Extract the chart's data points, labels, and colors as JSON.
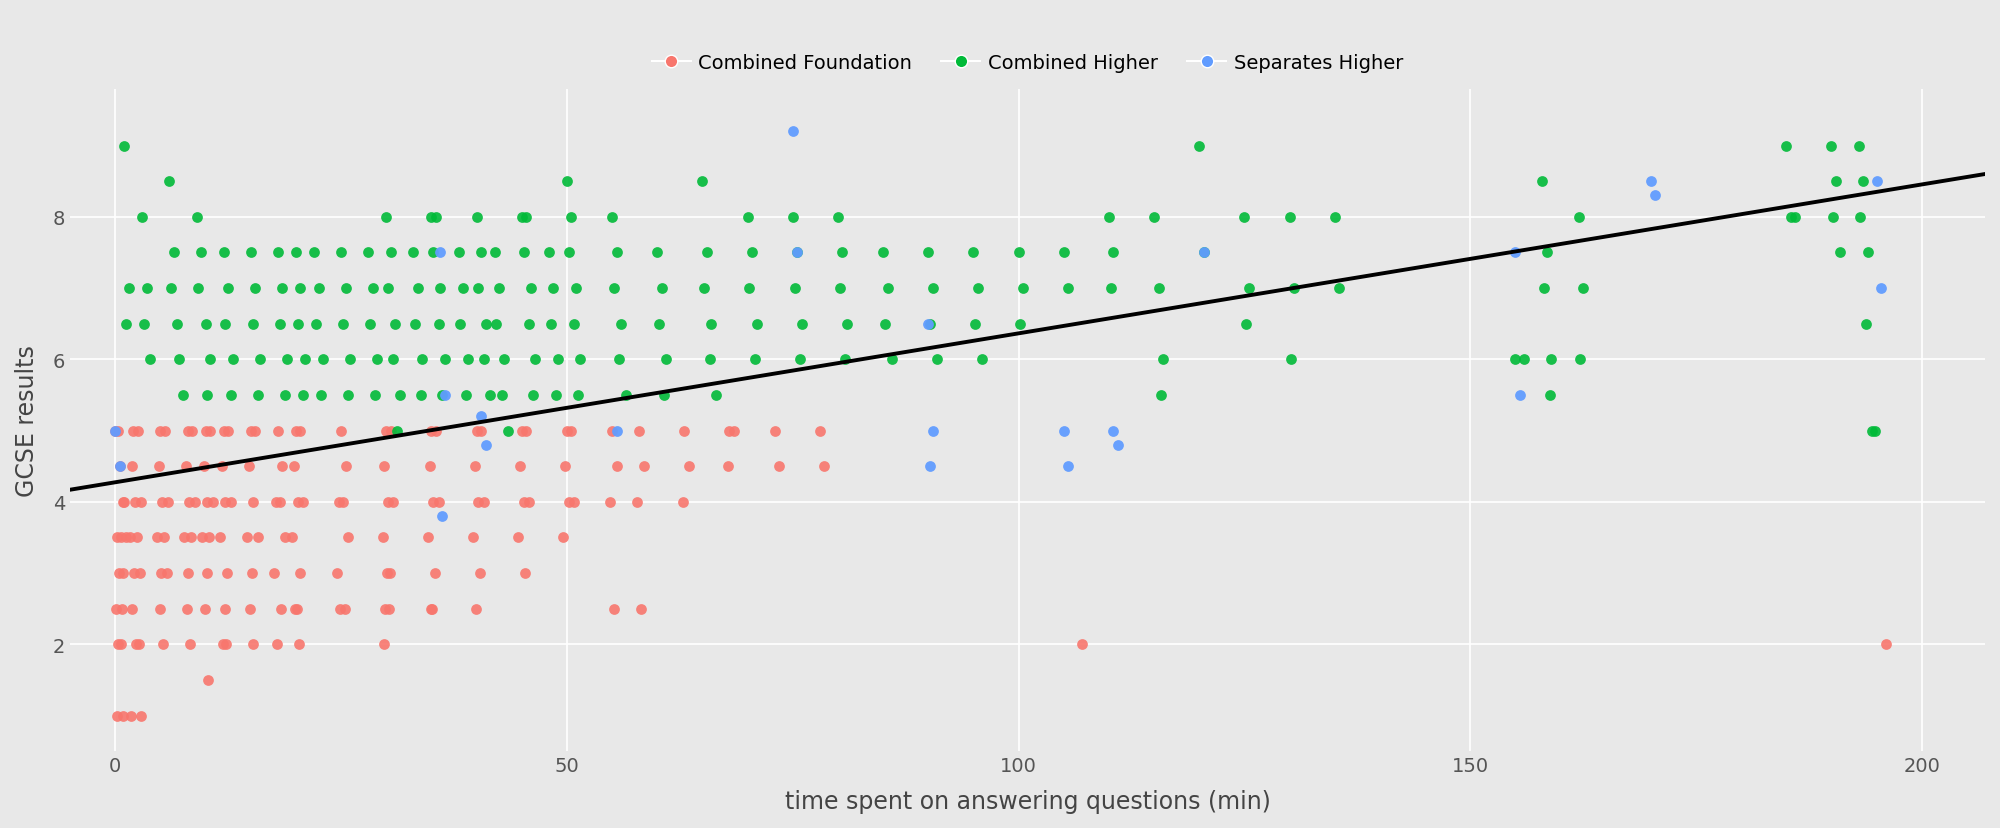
{
  "title": "",
  "xlabel": "time spent on answering questions (min)",
  "ylabel": "GCSE results",
  "xlim": [
    -5,
    207
  ],
  "ylim": [
    0.5,
    9.8
  ],
  "yticks": [
    2,
    4,
    6,
    8
  ],
  "xticks": [
    0,
    50,
    100,
    150,
    200
  ],
  "regression_line": {
    "x0": -5,
    "y0": 4.17,
    "x1": 207,
    "y1": 8.6
  },
  "legend_labels": [
    "Combined Foundation",
    "Combined Higher",
    "Separates Higher"
  ],
  "legend_colors": [
    "#F8766D",
    "#00BA38",
    "#619CFF"
  ],
  "background_color": "#E8E8E8",
  "grid_color": "#FFFFFF",
  "combined_foundation": [
    [
      0.0,
      5.0
    ],
    [
      0.3,
      5.0
    ],
    [
      0.5,
      4.5
    ],
    [
      0.8,
      4.0
    ],
    [
      1.0,
      4.0
    ],
    [
      0.2,
      3.5
    ],
    [
      0.6,
      3.5
    ],
    [
      1.2,
      3.5
    ],
    [
      0.4,
      3.0
    ],
    [
      0.9,
      3.0
    ],
    [
      0.1,
      2.5
    ],
    [
      0.7,
      2.5
    ],
    [
      0.3,
      2.0
    ],
    [
      0.6,
      2.0
    ],
    [
      0.2,
      1.0
    ],
    [
      0.8,
      1.0
    ],
    [
      2.0,
      5.0
    ],
    [
      2.5,
      5.0
    ],
    [
      1.8,
      4.5
    ],
    [
      2.2,
      4.0
    ],
    [
      2.8,
      4.0
    ],
    [
      1.6,
      3.5
    ],
    [
      2.4,
      3.5
    ],
    [
      2.1,
      3.0
    ],
    [
      2.7,
      3.0
    ],
    [
      1.9,
      2.5
    ],
    [
      2.3,
      2.0
    ],
    [
      2.6,
      2.0
    ],
    [
      1.7,
      1.0
    ],
    [
      2.9,
      1.0
    ],
    [
      5.0,
      5.0
    ],
    [
      5.5,
      5.0
    ],
    [
      4.8,
      4.5
    ],
    [
      5.2,
      4.0
    ],
    [
      5.8,
      4.0
    ],
    [
      4.6,
      3.5
    ],
    [
      5.4,
      3.5
    ],
    [
      5.1,
      3.0
    ],
    [
      5.7,
      3.0
    ],
    [
      4.9,
      2.5
    ],
    [
      5.3,
      2.0
    ],
    [
      8.0,
      5.0
    ],
    [
      8.5,
      5.0
    ],
    [
      7.8,
      4.5
    ],
    [
      8.2,
      4.0
    ],
    [
      8.8,
      4.0
    ],
    [
      7.6,
      3.5
    ],
    [
      8.4,
      3.5
    ],
    [
      8.1,
      3.0
    ],
    [
      7.9,
      2.5
    ],
    [
      8.3,
      2.0
    ],
    [
      10.0,
      5.0
    ],
    [
      10.5,
      5.0
    ],
    [
      9.8,
      4.5
    ],
    [
      10.2,
      4.0
    ],
    [
      10.8,
      4.0
    ],
    [
      9.6,
      3.5
    ],
    [
      10.4,
      3.5
    ],
    [
      10.1,
      3.0
    ],
    [
      9.9,
      2.5
    ],
    [
      10.3,
      1.5
    ],
    [
      12.0,
      5.0
    ],
    [
      12.5,
      5.0
    ],
    [
      11.8,
      4.5
    ],
    [
      12.2,
      4.0
    ],
    [
      12.8,
      4.0
    ],
    [
      11.6,
      3.5
    ],
    [
      12.4,
      3.0
    ],
    [
      12.1,
      2.5
    ],
    [
      11.9,
      2.0
    ],
    [
      12.3,
      2.0
    ],
    [
      15.0,
      5.0
    ],
    [
      15.5,
      5.0
    ],
    [
      14.8,
      4.5
    ],
    [
      15.2,
      4.0
    ],
    [
      15.8,
      3.5
    ],
    [
      14.6,
      3.5
    ],
    [
      15.1,
      3.0
    ],
    [
      14.9,
      2.5
    ],
    [
      15.3,
      2.0
    ],
    [
      18.0,
      5.0
    ],
    [
      18.5,
      4.5
    ],
    [
      17.8,
      4.0
    ],
    [
      18.2,
      4.0
    ],
    [
      18.8,
      3.5
    ],
    [
      17.6,
      3.0
    ],
    [
      18.4,
      2.5
    ],
    [
      17.9,
      2.0
    ],
    [
      20.0,
      5.0
    ],
    [
      20.5,
      5.0
    ],
    [
      19.8,
      4.5
    ],
    [
      20.2,
      4.0
    ],
    [
      20.8,
      4.0
    ],
    [
      19.6,
      3.5
    ],
    [
      20.4,
      3.0
    ],
    [
      20.1,
      2.5
    ],
    [
      19.9,
      2.5
    ],
    [
      20.3,
      2.0
    ],
    [
      25.0,
      5.0
    ],
    [
      25.5,
      4.5
    ],
    [
      24.8,
      4.0
    ],
    [
      25.2,
      4.0
    ],
    [
      25.8,
      3.5
    ],
    [
      24.6,
      3.0
    ],
    [
      25.4,
      2.5
    ],
    [
      24.9,
      2.5
    ],
    [
      30.0,
      5.0
    ],
    [
      30.5,
      5.0
    ],
    [
      29.8,
      4.5
    ],
    [
      30.2,
      4.0
    ],
    [
      30.8,
      4.0
    ],
    [
      29.6,
      3.5
    ],
    [
      30.4,
      3.0
    ],
    [
      30.1,
      3.0
    ],
    [
      29.9,
      2.5
    ],
    [
      30.3,
      2.5
    ],
    [
      29.7,
      2.0
    ],
    [
      35.0,
      5.0
    ],
    [
      35.5,
      5.0
    ],
    [
      34.8,
      4.5
    ],
    [
      35.2,
      4.0
    ],
    [
      35.8,
      4.0
    ],
    [
      34.6,
      3.5
    ],
    [
      35.4,
      3.0
    ],
    [
      35.1,
      2.5
    ],
    [
      34.9,
      2.5
    ],
    [
      40.0,
      5.0
    ],
    [
      40.5,
      5.0
    ],
    [
      39.8,
      4.5
    ],
    [
      40.2,
      4.0
    ],
    [
      40.8,
      4.0
    ],
    [
      39.6,
      3.5
    ],
    [
      40.4,
      3.0
    ],
    [
      39.9,
      2.5
    ],
    [
      45.0,
      5.0
    ],
    [
      45.5,
      5.0
    ],
    [
      44.8,
      4.5
    ],
    [
      45.2,
      4.0
    ],
    [
      45.8,
      4.0
    ],
    [
      44.6,
      3.5
    ],
    [
      45.4,
      3.0
    ],
    [
      50.0,
      5.0
    ],
    [
      50.5,
      5.0
    ],
    [
      49.8,
      4.5
    ],
    [
      50.2,
      4.0
    ],
    [
      50.8,
      4.0
    ],
    [
      49.6,
      3.5
    ],
    [
      55.0,
      5.0
    ],
    [
      55.5,
      4.5
    ],
    [
      54.8,
      4.0
    ],
    [
      55.2,
      2.5
    ],
    [
      58.0,
      5.0
    ],
    [
      58.5,
      4.5
    ],
    [
      57.8,
      4.0
    ],
    [
      58.2,
      2.5
    ],
    [
      63.0,
      5.0
    ],
    [
      63.5,
      4.5
    ],
    [
      62.8,
      4.0
    ],
    [
      68.0,
      5.0
    ],
    [
      68.5,
      5.0
    ],
    [
      67.8,
      4.5
    ],
    [
      73.0,
      5.0
    ],
    [
      73.5,
      4.5
    ],
    [
      78.0,
      5.0
    ],
    [
      78.5,
      4.5
    ],
    [
      107.0,
      2.0
    ],
    [
      196.0,
      2.0
    ]
  ],
  "combined_higher": [
    [
      1.0,
      9.0
    ],
    [
      1.5,
      7.0
    ],
    [
      1.2,
      6.5
    ],
    [
      3.0,
      8.0
    ],
    [
      3.5,
      7.0
    ],
    [
      3.2,
      6.5
    ],
    [
      3.8,
      6.0
    ],
    [
      6.0,
      8.5
    ],
    [
      6.5,
      7.5
    ],
    [
      6.2,
      7.0
    ],
    [
      6.8,
      6.5
    ],
    [
      7.0,
      6.0
    ],
    [
      7.5,
      5.5
    ],
    [
      9.0,
      8.0
    ],
    [
      9.5,
      7.5
    ],
    [
      9.2,
      7.0
    ],
    [
      10.0,
      6.5
    ],
    [
      10.5,
      6.0
    ],
    [
      10.2,
      5.5
    ],
    [
      12.0,
      7.5
    ],
    [
      12.5,
      7.0
    ],
    [
      12.2,
      6.5
    ],
    [
      13.0,
      6.0
    ],
    [
      12.8,
      5.5
    ],
    [
      15.0,
      7.5
    ],
    [
      15.5,
      7.0
    ],
    [
      15.2,
      6.5
    ],
    [
      16.0,
      6.0
    ],
    [
      15.8,
      5.5
    ],
    [
      18.0,
      7.5
    ],
    [
      18.5,
      7.0
    ],
    [
      18.2,
      6.5
    ],
    [
      19.0,
      6.0
    ],
    [
      18.8,
      5.5
    ],
    [
      20.0,
      7.5
    ],
    [
      20.5,
      7.0
    ],
    [
      20.2,
      6.5
    ],
    [
      21.0,
      6.0
    ],
    [
      20.8,
      5.5
    ],
    [
      22.0,
      7.5
    ],
    [
      22.5,
      7.0
    ],
    [
      22.2,
      6.5
    ],
    [
      23.0,
      6.0
    ],
    [
      22.8,
      5.5
    ],
    [
      25.0,
      7.5
    ],
    [
      25.5,
      7.0
    ],
    [
      25.2,
      6.5
    ],
    [
      26.0,
      6.0
    ],
    [
      25.8,
      5.5
    ],
    [
      28.0,
      7.5
    ],
    [
      28.5,
      7.0
    ],
    [
      28.2,
      6.5
    ],
    [
      29.0,
      6.0
    ],
    [
      28.8,
      5.5
    ],
    [
      30.0,
      8.0
    ],
    [
      30.5,
      7.5
    ],
    [
      30.2,
      7.0
    ],
    [
      31.0,
      6.5
    ],
    [
      30.8,
      6.0
    ],
    [
      31.5,
      5.5
    ],
    [
      31.2,
      5.0
    ],
    [
      33.0,
      7.5
    ],
    [
      33.5,
      7.0
    ],
    [
      33.2,
      6.5
    ],
    [
      34.0,
      6.0
    ],
    [
      33.8,
      5.5
    ],
    [
      35.0,
      8.0
    ],
    [
      35.5,
      8.0
    ],
    [
      35.2,
      7.5
    ],
    [
      36.0,
      7.0
    ],
    [
      35.8,
      6.5
    ],
    [
      36.5,
      6.0
    ],
    [
      36.2,
      5.5
    ],
    [
      38.0,
      7.5
    ],
    [
      38.5,
      7.0
    ],
    [
      38.2,
      6.5
    ],
    [
      39.0,
      6.0
    ],
    [
      38.8,
      5.5
    ],
    [
      40.0,
      8.0
    ],
    [
      40.5,
      7.5
    ],
    [
      40.2,
      7.0
    ],
    [
      41.0,
      6.5
    ],
    [
      40.8,
      6.0
    ],
    [
      41.5,
      5.5
    ],
    [
      42.0,
      7.5
    ],
    [
      42.5,
      7.0
    ],
    [
      42.2,
      6.5
    ],
    [
      43.0,
      6.0
    ],
    [
      42.8,
      5.5
    ],
    [
      43.5,
      5.0
    ],
    [
      45.0,
      8.0
    ],
    [
      45.5,
      8.0
    ],
    [
      45.2,
      7.5
    ],
    [
      46.0,
      7.0
    ],
    [
      45.8,
      6.5
    ],
    [
      46.5,
      6.0
    ],
    [
      46.2,
      5.5
    ],
    [
      48.0,
      7.5
    ],
    [
      48.5,
      7.0
    ],
    [
      48.2,
      6.5
    ],
    [
      49.0,
      6.0
    ],
    [
      48.8,
      5.5
    ],
    [
      50.0,
      8.5
    ],
    [
      50.5,
      8.0
    ],
    [
      50.2,
      7.5
    ],
    [
      51.0,
      7.0
    ],
    [
      50.8,
      6.5
    ],
    [
      51.5,
      6.0
    ],
    [
      51.2,
      5.5
    ],
    [
      55.0,
      8.0
    ],
    [
      55.5,
      7.5
    ],
    [
      55.2,
      7.0
    ],
    [
      56.0,
      6.5
    ],
    [
      55.8,
      6.0
    ],
    [
      56.5,
      5.5
    ],
    [
      60.0,
      7.5
    ],
    [
      60.5,
      7.0
    ],
    [
      60.2,
      6.5
    ],
    [
      61.0,
      6.0
    ],
    [
      60.8,
      5.5
    ],
    [
      65.0,
      8.5
    ],
    [
      65.5,
      7.5
    ],
    [
      65.2,
      7.0
    ],
    [
      66.0,
      6.5
    ],
    [
      65.8,
      6.0
    ],
    [
      66.5,
      5.5
    ],
    [
      70.0,
      8.0
    ],
    [
      70.5,
      7.5
    ],
    [
      70.2,
      7.0
    ],
    [
      71.0,
      6.5
    ],
    [
      70.8,
      6.0
    ],
    [
      75.0,
      8.0
    ],
    [
      75.5,
      7.5
    ],
    [
      75.2,
      7.0
    ],
    [
      76.0,
      6.5
    ],
    [
      75.8,
      6.0
    ],
    [
      80.0,
      8.0
    ],
    [
      80.5,
      7.5
    ],
    [
      80.2,
      7.0
    ],
    [
      81.0,
      6.5
    ],
    [
      80.8,
      6.0
    ],
    [
      85.0,
      7.5
    ],
    [
      85.5,
      7.0
    ],
    [
      85.2,
      6.5
    ],
    [
      86.0,
      6.0
    ],
    [
      90.0,
      7.5
    ],
    [
      90.5,
      7.0
    ],
    [
      90.2,
      6.5
    ],
    [
      91.0,
      6.0
    ],
    [
      95.0,
      7.5
    ],
    [
      95.5,
      7.0
    ],
    [
      95.2,
      6.5
    ],
    [
      96.0,
      6.0
    ],
    [
      100.0,
      7.5
    ],
    [
      100.5,
      7.0
    ],
    [
      100.2,
      6.5
    ],
    [
      105.0,
      7.5
    ],
    [
      105.5,
      7.0
    ],
    [
      110.0,
      8.0
    ],
    [
      110.5,
      7.5
    ],
    [
      110.2,
      7.0
    ],
    [
      115.0,
      8.0
    ],
    [
      115.5,
      7.0
    ],
    [
      116.0,
      6.0
    ],
    [
      115.8,
      5.5
    ],
    [
      120.0,
      9.0
    ],
    [
      120.5,
      7.5
    ],
    [
      125.0,
      8.0
    ],
    [
      125.5,
      7.0
    ],
    [
      125.2,
      6.5
    ],
    [
      130.0,
      8.0
    ],
    [
      130.5,
      7.0
    ],
    [
      130.2,
      6.0
    ],
    [
      135.0,
      8.0
    ],
    [
      135.5,
      7.0
    ],
    [
      155.0,
      6.0
    ],
    [
      156.0,
      6.0
    ],
    [
      158.0,
      8.5
    ],
    [
      158.5,
      7.5
    ],
    [
      158.2,
      7.0
    ],
    [
      159.0,
      6.0
    ],
    [
      158.8,
      5.5
    ],
    [
      162.0,
      8.0
    ],
    [
      162.5,
      7.0
    ],
    [
      162.2,
      6.0
    ],
    [
      185.0,
      9.0
    ],
    [
      185.5,
      8.0
    ],
    [
      186.0,
      8.0
    ],
    [
      190.0,
      9.0
    ],
    [
      190.5,
      8.5
    ],
    [
      190.2,
      8.0
    ],
    [
      191.0,
      7.5
    ],
    [
      193.0,
      9.0
    ],
    [
      193.5,
      8.5
    ],
    [
      193.2,
      8.0
    ],
    [
      194.0,
      7.5
    ],
    [
      193.8,
      6.5
    ],
    [
      194.5,
      5.0
    ],
    [
      194.8,
      5.0
    ]
  ],
  "separates_higher": [
    [
      0.0,
      5.0
    ],
    [
      0.5,
      4.5
    ],
    [
      36.0,
      7.5
    ],
    [
      36.5,
      5.5
    ],
    [
      36.2,
      3.8
    ],
    [
      40.5,
      5.2
    ],
    [
      41.0,
      4.8
    ],
    [
      55.5,
      5.0
    ],
    [
      75.0,
      9.2
    ],
    [
      75.5,
      7.5
    ],
    [
      90.0,
      6.5
    ],
    [
      90.5,
      5.0
    ],
    [
      90.2,
      4.5
    ],
    [
      105.0,
      5.0
    ],
    [
      105.5,
      4.5
    ],
    [
      110.5,
      5.0
    ],
    [
      111.0,
      4.8
    ],
    [
      120.5,
      7.5
    ],
    [
      155.0,
      7.5
    ],
    [
      155.5,
      5.5
    ],
    [
      170.0,
      8.5
    ],
    [
      170.5,
      8.3
    ],
    [
      195.0,
      8.5
    ],
    [
      195.5,
      7.0
    ]
  ]
}
